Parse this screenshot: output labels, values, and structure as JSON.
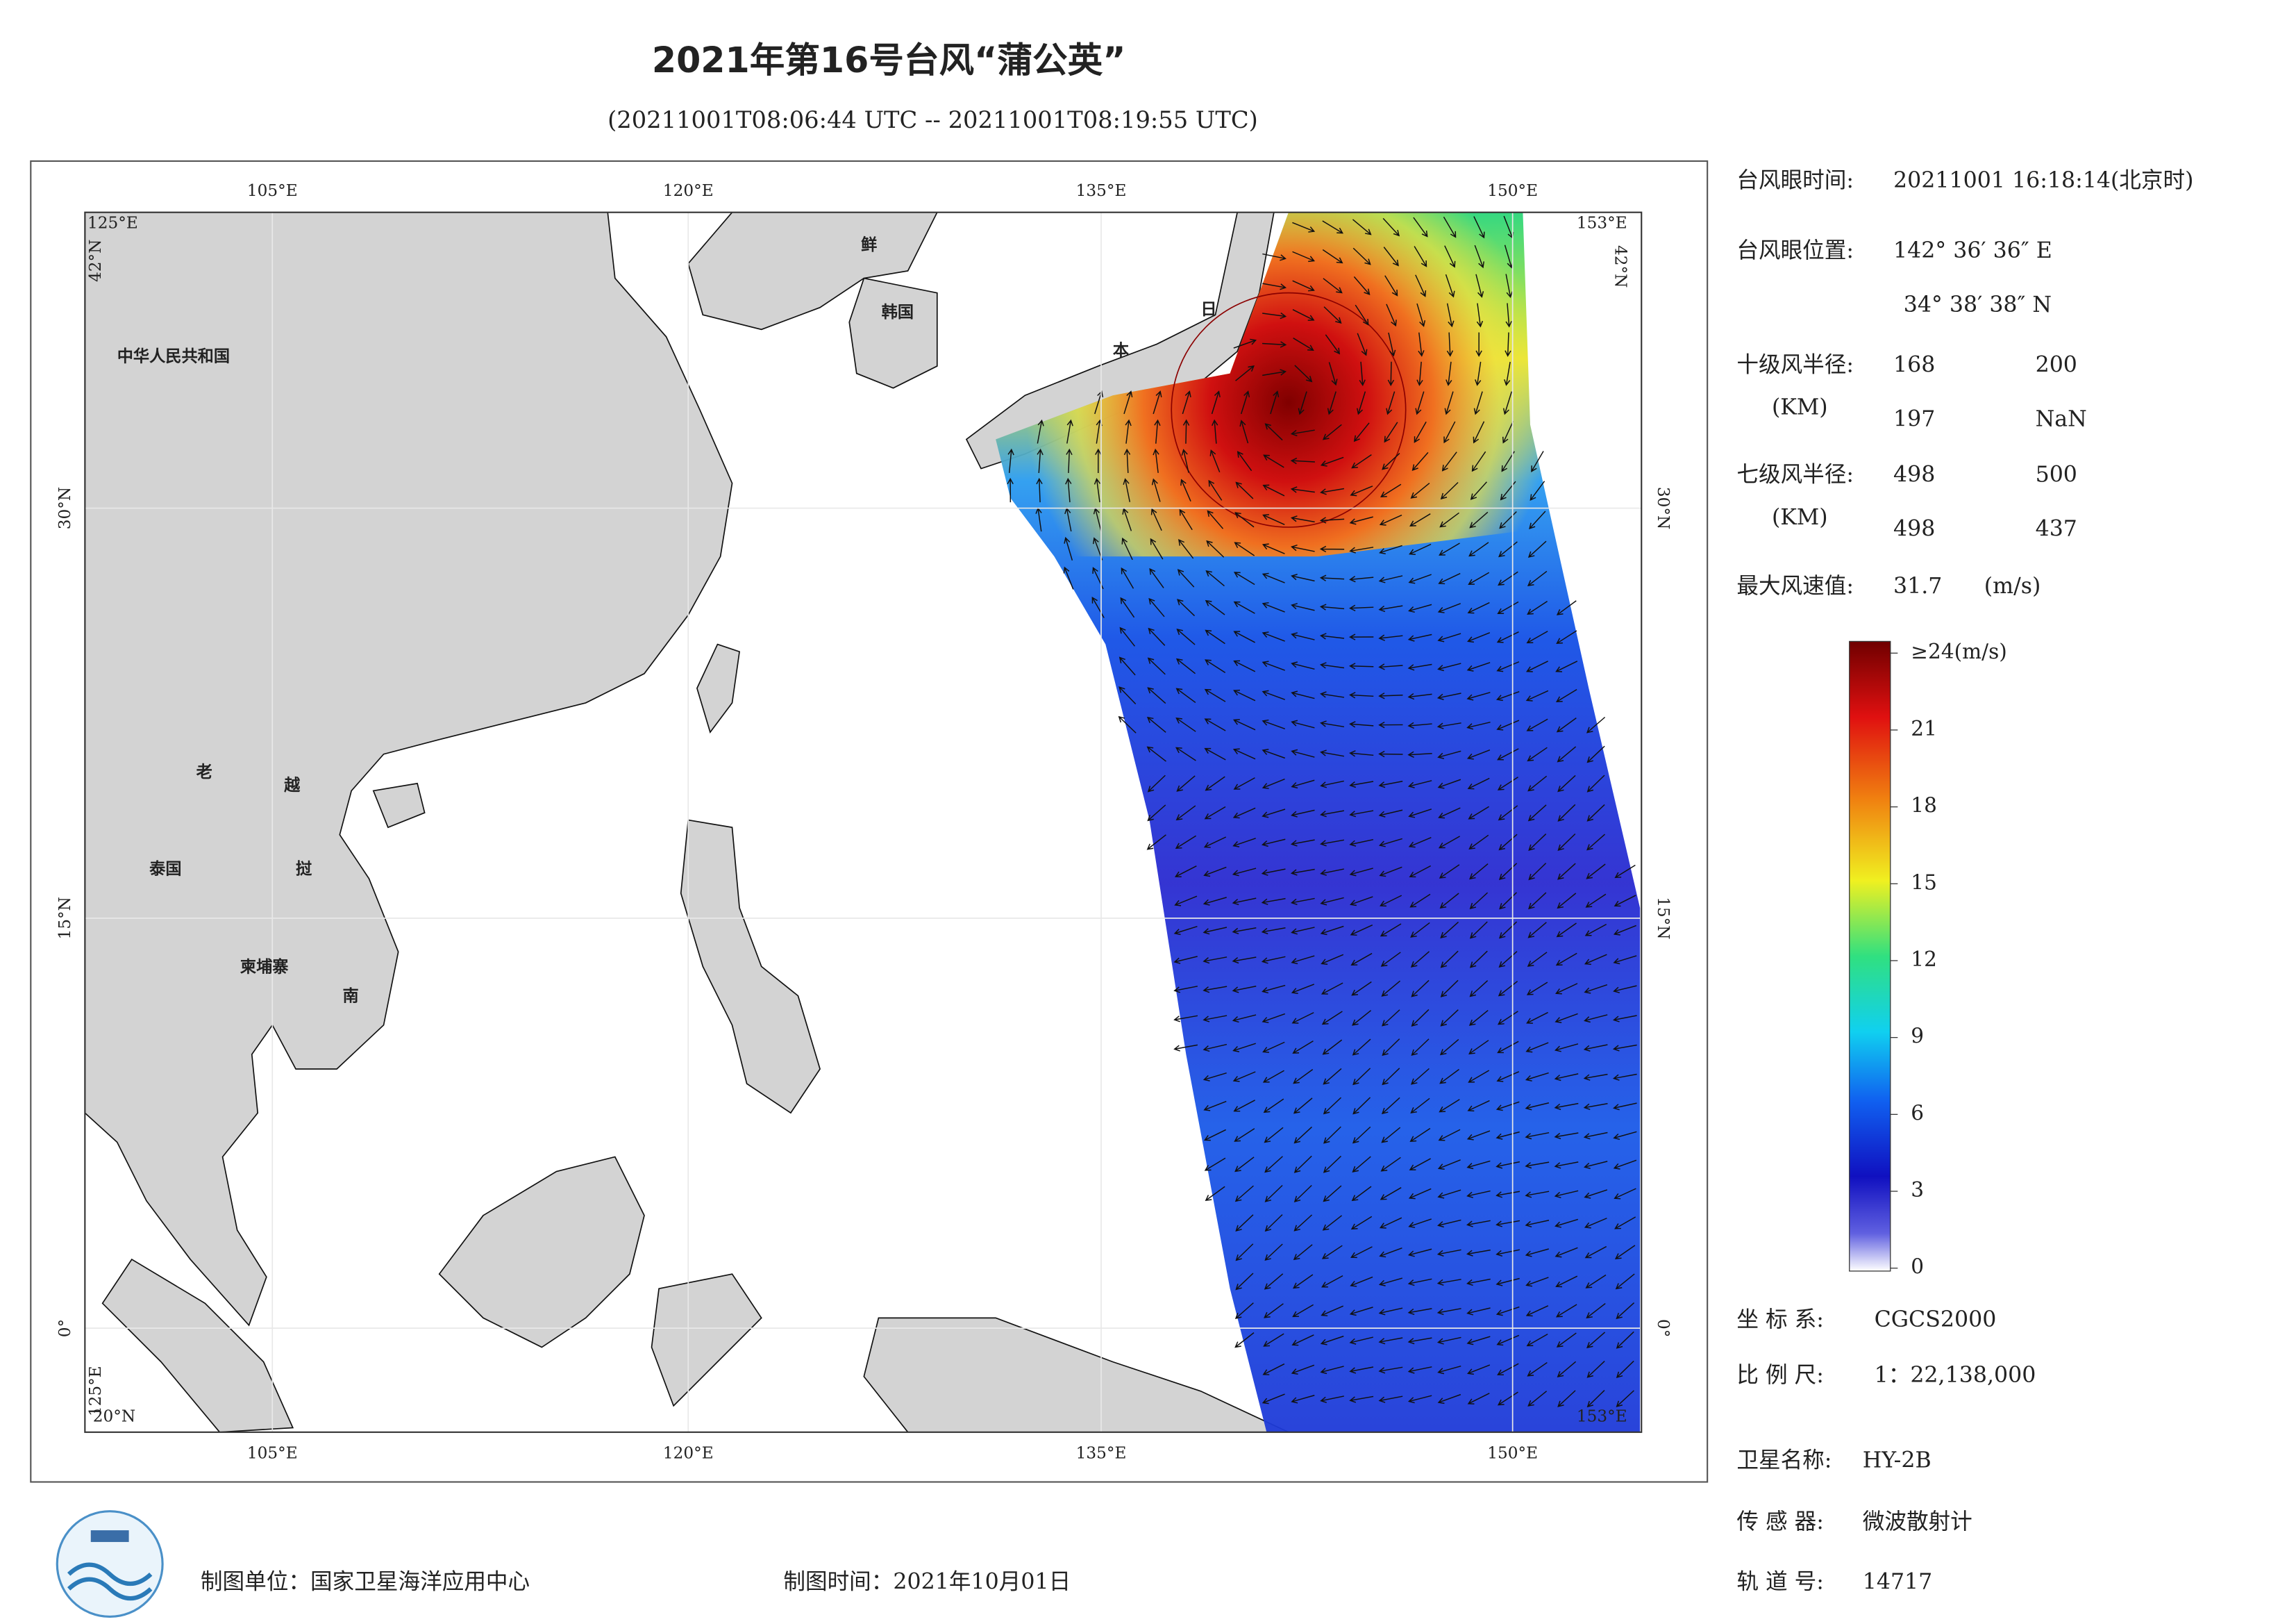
{
  "header": {
    "title": "2021年第16号台风“蒲公英”",
    "subtitle": "(20211001T08:06:44 UTC -- 20211001T08:19:55 UTC)"
  },
  "map": {
    "lon_labels": [
      "105°E",
      "120°E",
      "135°E",
      "150°E"
    ],
    "lat_labels": [
      "30°N",
      "15°N",
      "0°"
    ],
    "corners": {
      "top_left_lon": "125°E",
      "top_left_lat": "42°N",
      "top_right_lon": "153°E",
      "top_right_lat": "42°N",
      "bottom_left_lon": "125°E",
      "bottom_left_lat": "20°N",
      "bottom_right_lon": "153°E"
    },
    "places": [
      "中华人民共和国",
      "老",
      "越",
      "泰国",
      "挝",
      "柬埔寨",
      "南",
      "鲜",
      "韩国",
      "日",
      "本"
    ]
  },
  "info": {
    "eye_time": {
      "label": "台风眼时间:",
      "value": "20211001 16:18:14(北京时)"
    },
    "eye_position": {
      "label": "台风眼位置:",
      "lon": "142° 36′ 36″ E",
      "lat": "34° 38′ 38″ N"
    },
    "r10": {
      "label": "十级风半径:",
      "unit": "(KM)",
      "values": [
        "168",
        "200",
        "197",
        "NaN"
      ]
    },
    "r7": {
      "label": "七级风半径:",
      "unit": "(KM)",
      "values": [
        "498",
        "500",
        "498",
        "437"
      ]
    },
    "max_wind": {
      "label": "最大风速值:",
      "value": "31.7",
      "unit": "(m/s)"
    }
  },
  "colorbar": {
    "range": [
      0,
      24
    ],
    "ticks": [
      0,
      3,
      6,
      9,
      12,
      15,
      18,
      21,
      {
        "value": 24,
        "label": "≥24(m/s)"
      }
    ]
  },
  "meta": {
    "crs_label": "坐 标 系:",
    "crs": "CGCS2000",
    "scale_label": "比 例 尺:",
    "scale": "1：22,138,000",
    "satellite_label": "卫星名称:",
    "satellite": "HY-2B",
    "sensor_label": "传 感 器:",
    "sensor": "微波散射计",
    "orbit_label": "轨 道 号:",
    "orbit": "14717"
  },
  "footer": {
    "producer": "制图单位：国家卫星海洋应用中心",
    "date": "制图时间：2021年10月01日"
  }
}
